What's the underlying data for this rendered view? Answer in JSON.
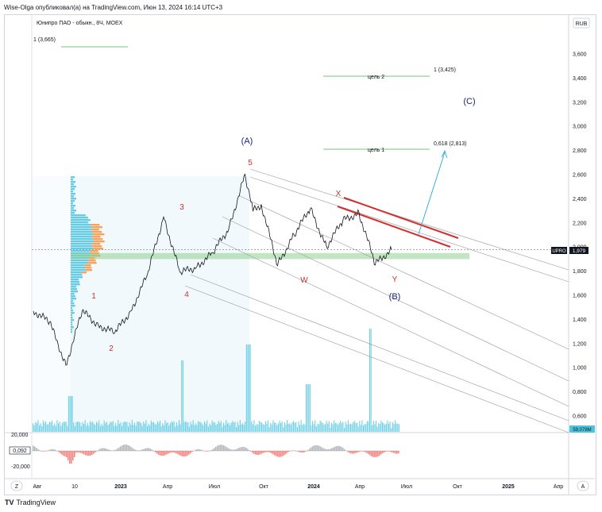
{
  "header": {
    "publisher": "Wise-Olga опубликовал(а) на TradingView.com, Июн 13, 2024 16:14 UTC+3"
  },
  "legend": {
    "symbol": "Юнипро ПАО - обыкн., 8Ч, MOEX"
  },
  "currency": "RUB",
  "price_tag": {
    "ticker": "UPRO",
    "price": "1,979"
  },
  "volume_tag": "59,078M",
  "oscillator": {
    "top_label": "20,000",
    "current": "0,092",
    "bottom_label": "-20,000"
  },
  "footer": {
    "brand": "TradingView",
    "logo": "TV"
  },
  "buttons": {
    "left": "Z",
    "right": "A"
  },
  "colors": {
    "price_line": "#131722",
    "wave_red": "#d32f2f",
    "wave_blue": "#1a237e",
    "target_green": "#4caf50",
    "zone_green": "#8fd18f",
    "projection_arrow": "#2aa7d8",
    "channel_line": "#9598a1",
    "volume_bar": "#4dc4de",
    "profile_blue": "#4dc4de",
    "profile_orange": "#f7a35c",
    "badge_dark": "#131722",
    "badge_blue": "#2962ff"
  },
  "chart_data": {
    "type": "line",
    "title": "Юнипро ПАО - обыкн., 8Ч, MOEX",
    "x_tick_labels": [
      "Авг",
      "10",
      "2023",
      "Апр",
      "Июл",
      "Окт",
      "2024",
      "Апр",
      "Июл",
      "Окт",
      "2025",
      "Апр"
    ],
    "y_tick_labels": [
      "0,600",
      "0,800",
      "1,000",
      "1,200",
      "1,400",
      "1,600",
      "1,800",
      "2,000",
      "2,200",
      "2,400",
      "2,600",
      "2,800",
      "3,000",
      "3,200",
      "3,400",
      "3,600"
    ],
    "ylim": [
      0.5,
      3.8
    ],
    "last_price": 1.979,
    "series": [
      {
        "x": [
          "2022-08",
          "2022-09",
          "2022-10",
          "2022-11",
          "2022-12",
          "2023-01",
          "2023-02",
          "2023-03",
          "2023-04",
          "2023-05",
          "2023-06",
          "2023-07",
          "2023-08",
          "2023-09",
          "2023-09",
          "2023-10",
          "2023-11",
          "2023-12",
          "2024-01",
          "2024-02",
          "2024-03",
          "2024-04",
          "2024-05",
          "2024-06"
        ],
        "values": [
          1.47,
          1.38,
          1.02,
          1.47,
          1.35,
          1.29,
          1.47,
          1.77,
          2.25,
          1.79,
          1.83,
          1.95,
          2.15,
          2.6,
          2.3,
          2.35,
          1.85,
          2.1,
          2.32,
          2.0,
          2.22,
          2.28,
          1.86,
          1.979
        ]
      }
    ],
    "wave_labels": [
      {
        "label": "1",
        "x": "2022-11",
        "y": 1.6,
        "color": "red"
      },
      {
        "label": "2",
        "x": "2022-12",
        "y": 1.15,
        "color": "red"
      },
      {
        "label": "3",
        "x": "2023-04",
        "y": 2.25,
        "color": "red"
      },
      {
        "label": "4",
        "x": "2023-05",
        "y": 1.62,
        "color": "red"
      },
      {
        "label": "5",
        "x": "2023-09",
        "y": 2.65,
        "color": "red"
      },
      {
        "label": "W",
        "x": "2023-12",
        "y": 1.77,
        "color": "red"
      },
      {
        "label": "X",
        "x": "2024-02",
        "y": 2.4,
        "color": "red"
      },
      {
        "label": "Y",
        "x": "2024-06",
        "y": 1.77,
        "color": "red"
      },
      {
        "label": "(A)",
        "x": "2023-08",
        "y": 2.88,
        "color": "blue"
      },
      {
        "label": "(B)",
        "x": "2024-06",
        "y": 1.6,
        "color": "blue"
      },
      {
        "label": "(C)",
        "x": "2024-09",
        "y": 3.18,
        "color": "blue"
      }
    ],
    "targets": [
      {
        "label": "1 (3,665)",
        "y": 3.665
      },
      {
        "label": "цель 2",
        "y": 3.4
      },
      {
        "label": "1 (3,425)",
        "y": 3.425
      },
      {
        "label": "цель 1",
        "y": 2.8
      },
      {
        "label": "0,618 (2,813)",
        "y": 2.813
      }
    ],
    "support_zone": [
      1.9,
      1.95
    ],
    "oscillator_range": [
      -20000,
      20000
    ],
    "grid": false
  }
}
